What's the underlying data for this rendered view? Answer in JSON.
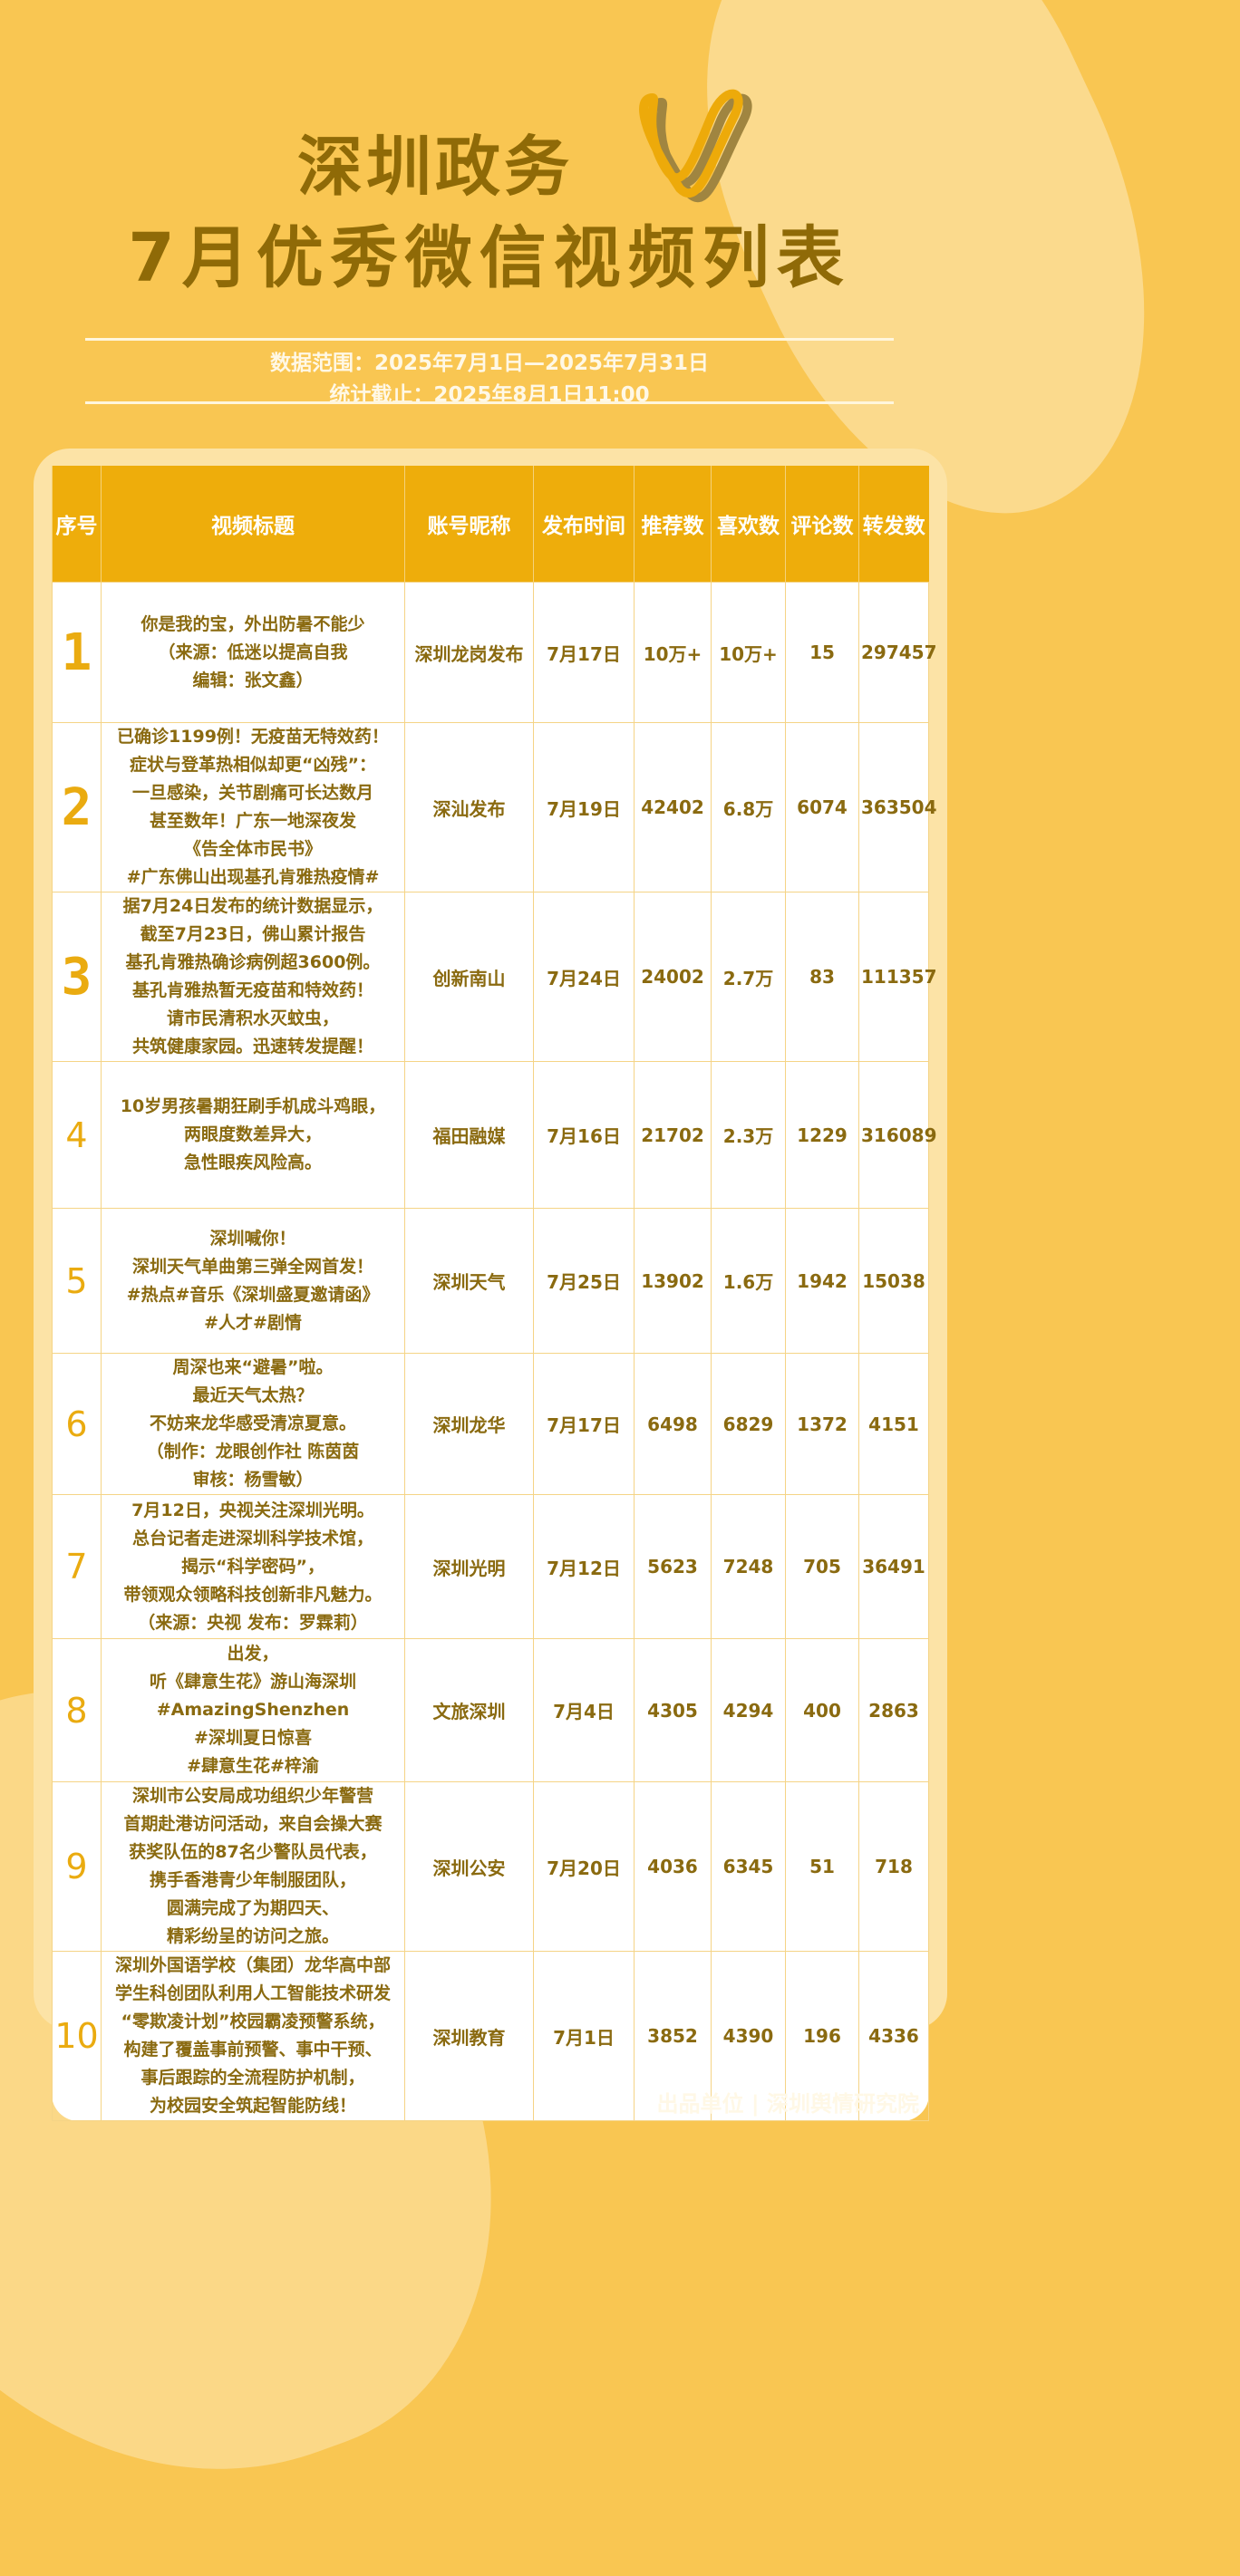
{
  "header": {
    "title_line1": "深圳政务",
    "title_line2": "7月优秀微信视频列表",
    "data_range": "数据范围：2025年7月1日—2025年7月31日",
    "cutoff": "统计截止：2025年8月1日11:00",
    "logo_icon": "wechat-channels-logo",
    "colors": {
      "background": "#F9C652",
      "header": "#EEAD0B",
      "text": "#8A6A10",
      "accent": "#EAAB10"
    }
  },
  "table": {
    "columns": [
      "序号",
      "视频标题",
      "账号昵称",
      "发布时间",
      "推荐数",
      "喜欢数",
      "评论数",
      "转发数"
    ],
    "rows": [
      {
        "rank": "1",
        "title": "你是我的宝，外出防暑不能少\n（来源：低迷以提高自我\n编辑：张文鑫）",
        "account": "深圳龙岗发布",
        "date": "7月17日",
        "recommend": "10万+",
        "like": "10万+",
        "comment": "15",
        "share": "297457"
      },
      {
        "rank": "2",
        "title": "已确诊1199例！无疫苗无特效药！\n症状与登革热相似却更“凶残”：\n一旦感染，关节剧痛可长达数月\n甚至数年！广东一地深夜发\n《告全体市民书》\n#广东佛山出现基孔肯雅热疫情#",
        "account": "深汕发布",
        "date": "7月19日",
        "recommend": "42402",
        "like": "6.8万",
        "comment": "6074",
        "share": "363504"
      },
      {
        "rank": "3",
        "title": "据7月24日发布的统计数据显示，\n截至7月23日，佛山累计报告\n基孔肯雅热确诊病例超3600例。\n基孔肯雅热暂无疫苗和特效药！\n请市民清积水灭蚊虫，\n共筑健康家园。迅速转发提醒！",
        "account": "创新南山",
        "date": "7月24日",
        "recommend": "24002",
        "like": "2.7万",
        "comment": "83",
        "share": "111357"
      },
      {
        "rank": "4",
        "title": "10岁男孩暑期狂刷手机成斗鸡眼，\n两眼度数差异大，\n急性眼疾风险高。",
        "account": "福田融媒",
        "date": "7月16日",
        "recommend": "21702",
        "like": "2.3万",
        "comment": "1229",
        "share": "316089"
      },
      {
        "rank": "5",
        "title": "深圳喊你！\n深圳天气单曲第三弹全网首发！\n#热点#音乐《深圳盛夏邀请函》\n#人才#剧情",
        "account": "深圳天气",
        "date": "7月25日",
        "recommend": "13902",
        "like": "1.6万",
        "comment": "1942",
        "share": "15038"
      },
      {
        "rank": "6",
        "title": "周深也来“避暑”啦。\n最近天气太热？\n不妨来龙华感受清凉夏意。\n（制作：龙眼创作社 陈茵茵\n审核：杨雪敏）",
        "account": "深圳龙华",
        "date": "7月17日",
        "recommend": "6498",
        "like": "6829",
        "comment": "1372",
        "share": "4151"
      },
      {
        "rank": "7",
        "title": "7月12日，央视关注深圳光明。\n总台记者走进深圳科学技术馆，\n揭示“科学密码”，\n带领观众领略科技创新非凡魅力。\n（来源：央视 发布：罗霖莉）",
        "account": "深圳光明",
        "date": "7月12日",
        "recommend": "5623",
        "like": "7248",
        "comment": "705",
        "share": "36491"
      },
      {
        "rank": "8",
        "title": "出发，\n听《肆意生花》游山海深圳\n#AmazingShenzhen\n#深圳夏日惊喜\n#肆意生花#梓渝",
        "account": "文旅深圳",
        "date": "7月4日",
        "recommend": "4305",
        "like": "4294",
        "comment": "400",
        "share": "2863"
      },
      {
        "rank": "9",
        "title": "深圳市公安局成功组织少年警营\n首期赴港访问活动，来自会操大赛\n获奖队伍的87名少警队员代表，\n携手香港青少年制服团队，\n圆满完成了为期四天、\n精彩纷呈的访问之旅。",
        "account": "深圳公安",
        "date": "7月20日",
        "recommend": "4036",
        "like": "6345",
        "comment": "51",
        "share": "718"
      },
      {
        "rank": "10",
        "title": "深圳外国语学校（集团）龙华高中部\n学生科创团队利用人工智能技术研发\n“零欺凌计划”校园霸凌预警系统，\n构建了覆盖事前预警、事中干预、\n事后跟踪的全流程防护机制，\n为校园安全筑起智能防线！",
        "account": "深圳教育",
        "date": "7月1日",
        "recommend": "3852",
        "like": "4390",
        "comment": "196",
        "share": "4336"
      }
    ]
  },
  "footer": {
    "credit": "出品单位 | 深圳舆情研究院"
  }
}
